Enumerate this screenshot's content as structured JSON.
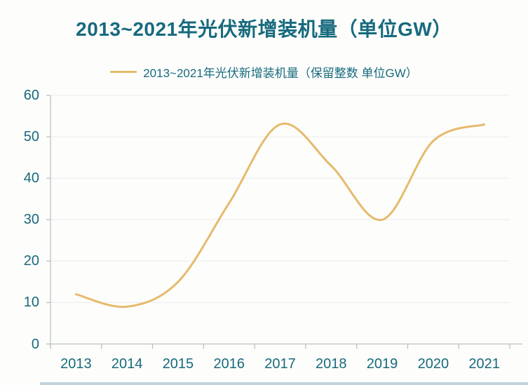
{
  "chart_data": {
    "type": "line",
    "title": "2013~2021年光伏新增装机量（单位GW）",
    "legend_label": "2013~2021年光伏新增装机量（保留整数 单位GW）",
    "categories": [
      "2013",
      "2014",
      "2015",
      "2016",
      "2017",
      "2018",
      "2019",
      "2020",
      "2021"
    ],
    "series": [
      {
        "name": "2013~2021年光伏新增装机量（保留整数 单位GW）",
        "values": [
          12,
          9,
          15,
          34,
          53,
          43,
          30,
          49,
          53
        ]
      }
    ],
    "xlabel": "",
    "ylabel": "",
    "ylim": [
      0,
      60
    ],
    "yticks": [
      0,
      10,
      20,
      30,
      40,
      50,
      60
    ],
    "grid": "horizontal",
    "legend_position": "top",
    "smooth": true
  },
  "colors": {
    "line": "#e6ba6c",
    "text": "#176a7e",
    "axis": "#b9c4c6",
    "grid": "#ececec",
    "background": "#fdfdfb",
    "bottom_strip": "#c2d2dc"
  }
}
